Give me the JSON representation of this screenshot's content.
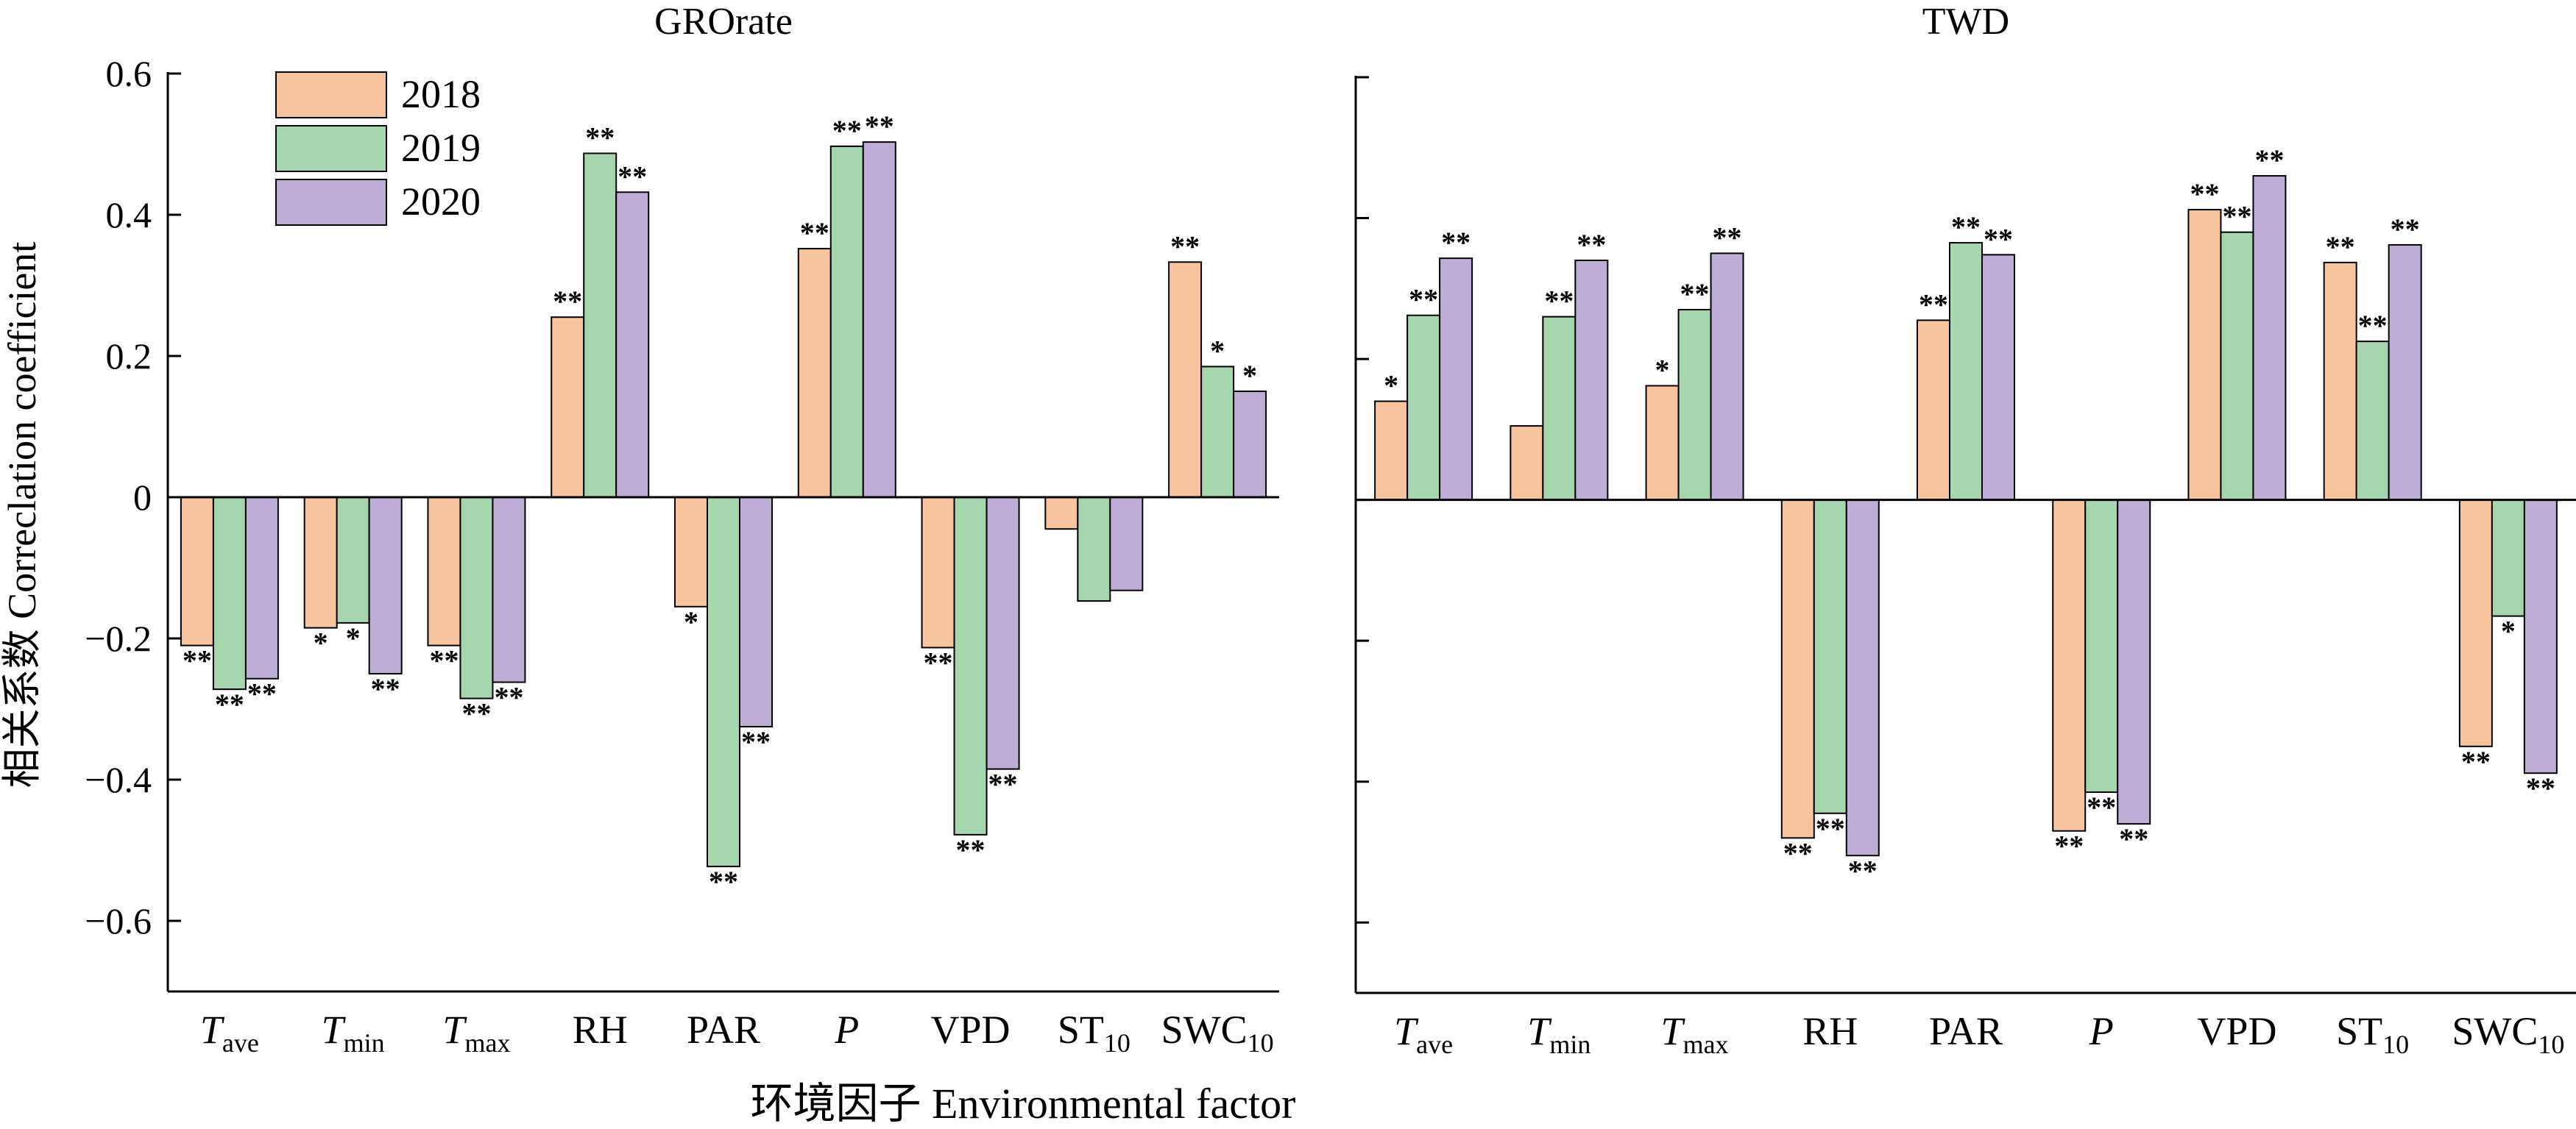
{
  "y_axis_label": "相关系数 Correclation coefficient",
  "x_axis_label": "环境因子 Environmental factor",
  "colors": {
    "2018": "#f8c49e",
    "2019": "#a6d6ae",
    "2020": "#beadd6"
  },
  "chart_data": [
    {
      "type": "bar",
      "title": "GROrate",
      "categories": [
        {
          "main": "T",
          "sub": "ave",
          "italic": true
        },
        {
          "main": "T",
          "sub": "min",
          "italic": true
        },
        {
          "main": "T",
          "sub": "max",
          "italic": true
        },
        {
          "main": "RH",
          "sub": "",
          "italic": false
        },
        {
          "main": "PAR",
          "sub": "",
          "italic": false
        },
        {
          "main": "P",
          "sub": "",
          "italic": true
        },
        {
          "main": "VPD",
          "sub": "",
          "italic": false
        },
        {
          "main": "ST",
          "sub": "10",
          "italic": false
        },
        {
          "main": "SWC",
          "sub": "10",
          "italic": false
        }
      ],
      "series": [
        {
          "name": "2018",
          "values": [
            -0.21,
            -0.185,
            -0.21,
            0.255,
            -0.155,
            0.352,
            -0.213,
            -0.045,
            0.333
          ],
          "marks": [
            "**",
            "*",
            "**",
            "**",
            "*",
            "**",
            "**",
            "",
            "**"
          ]
        },
        {
          "name": "2019",
          "values": [
            -0.272,
            -0.178,
            -0.285,
            0.487,
            -0.523,
            0.497,
            -0.478,
            -0.147,
            0.185
          ],
          "marks": [
            "**",
            "*",
            "**",
            "**",
            "**",
            "**",
            "**",
            "",
            "*"
          ]
        },
        {
          "name": "2020",
          "values": [
            -0.257,
            -0.25,
            -0.262,
            0.432,
            -0.325,
            0.503,
            -0.385,
            -0.132,
            0.15
          ],
          "marks": [
            "**",
            "**",
            "**",
            "**",
            "**",
            "**",
            "**",
            "",
            "*"
          ]
        }
      ],
      "ylim": [
        -0.7,
        0.6
      ],
      "yticks": [
        -0.6,
        -0.4,
        -0.2,
        0,
        0.2,
        0.4,
        0.6
      ],
      "ytick_labels": [
        "−0.6",
        "−0.4",
        "−0.2",
        "0",
        "0.2",
        "0.4",
        "0.6"
      ],
      "legend": {
        "position": "top-left",
        "entries": [
          "2018",
          "2019",
          "2020"
        ]
      }
    },
    {
      "type": "bar",
      "title": "TWD",
      "categories": [
        {
          "main": "T",
          "sub": "ave",
          "italic": true
        },
        {
          "main": "T",
          "sub": "min",
          "italic": true
        },
        {
          "main": "T",
          "sub": "max",
          "italic": true
        },
        {
          "main": "RH",
          "sub": "",
          "italic": false
        },
        {
          "main": "PAR",
          "sub": "",
          "italic": false
        },
        {
          "main": "P",
          "sub": "",
          "italic": true
        },
        {
          "main": "VPD",
          "sub": "",
          "italic": false
        },
        {
          "main": "ST",
          "sub": "10",
          "italic": false
        },
        {
          "main": "SWC",
          "sub": "10",
          "italic": false
        }
      ],
      "series": [
        {
          "name": "2018",
          "values": [
            0.14,
            0.105,
            0.162,
            -0.48,
            0.255,
            -0.47,
            0.412,
            0.337,
            -0.35
          ],
          "marks": [
            "*",
            "",
            "*",
            "**",
            "**",
            "**",
            "**",
            "**",
            "**"
          ]
        },
        {
          "name": "2019",
          "values": [
            0.262,
            0.26,
            0.27,
            -0.445,
            0.365,
            -0.415,
            0.38,
            0.225,
            -0.165
          ],
          "marks": [
            "**",
            "**",
            "**",
            "**",
            "**",
            "**",
            "**",
            "**",
            "*"
          ]
        },
        {
          "name": "2020",
          "values": [
            0.343,
            0.34,
            0.35,
            -0.505,
            0.348,
            -0.46,
            0.46,
            0.362,
            -0.388
          ],
          "marks": [
            "**",
            "**",
            "**",
            "**",
            "**",
            "**",
            "**",
            "**",
            "**"
          ]
        }
      ],
      "ylim": [
        -0.7,
        0.6
      ],
      "yticks": [
        -0.6,
        -0.4,
        -0.2,
        0,
        0.2,
        0.4,
        0.6
      ],
      "ytick_labels": [
        "",
        "",
        "",
        "",
        "",
        "",
        ""
      ]
    }
  ]
}
